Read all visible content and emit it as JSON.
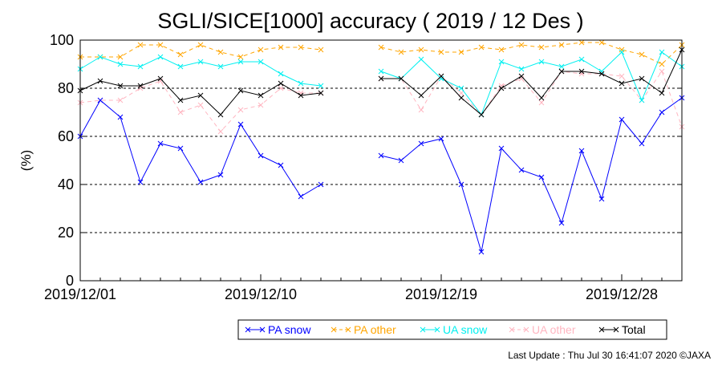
{
  "chart_data": {
    "type": "line",
    "title": "SGLI/SICE[1000] accuracy ( 2019 / 12 Des )",
    "ylabel": "(%)",
    "xlabel": "",
    "ylim": [
      0,
      100
    ],
    "yticks": [
      "0",
      "20",
      "40",
      "60",
      "80",
      "100"
    ],
    "xlim": [
      "2019/12/01",
      "2019/12/31"
    ],
    "xticks": [
      {
        "label": "2019/12/01",
        "day": 1
      },
      {
        "label": "2019/12/10",
        "day": 10
      },
      {
        "label": "2019/12/19",
        "day": 19
      },
      {
        "label": "2019/12/28",
        "day": 28
      }
    ],
    "grid": "horizontal dashed at 20, 40, 60, 80",
    "legend_position": "bottom",
    "x": [
      1,
      2,
      3,
      4,
      5,
      6,
      7,
      8,
      9,
      10,
      11,
      12,
      13,
      14,
      15,
      16,
      17,
      18,
      19,
      20,
      21,
      22,
      23,
      24,
      25,
      26,
      27,
      28,
      29,
      30,
      31
    ],
    "series": [
      {
        "name": "PA snow",
        "color": "#0000ff",
        "values": [
          60,
          75,
          68,
          41,
          57,
          55,
          41,
          44,
          65,
          52,
          48,
          35,
          40,
          null,
          null,
          52,
          50,
          57,
          59,
          40,
          12,
          55,
          46,
          43,
          24,
          54,
          34,
          67,
          57,
          70,
          76
        ]
      },
      {
        "name": "PA other",
        "color": "#ffa500",
        "values": [
          93,
          93,
          93,
          98,
          98,
          94,
          98,
          95,
          93,
          96,
          97,
          97,
          96,
          null,
          null,
          97,
          95,
          96,
          95,
          95,
          97,
          96,
          98,
          97,
          98,
          99,
          99,
          96,
          94,
          90,
          98
        ]
      },
      {
        "name": "UA snow",
        "color": "#00f0f0",
        "values": [
          88,
          93,
          90,
          89,
          93,
          89,
          91,
          89,
          91,
          91,
          86,
          82,
          81,
          null,
          null,
          87,
          84,
          92,
          84,
          80,
          69,
          91,
          88,
          91,
          89,
          92,
          87,
          95,
          75,
          95,
          89
        ]
      },
      {
        "name": "UA other",
        "color": "#ffb6c1",
        "values": [
          74,
          75,
          75,
          80,
          83,
          70,
          73,
          62,
          71,
          73,
          80,
          78,
          78,
          null,
          null,
          84,
          84,
          71,
          85,
          78,
          69,
          81,
          84,
          74,
          87,
          86,
          86,
          85,
          75,
          87,
          64
        ]
      },
      {
        "name": "Total",
        "color": "#000000",
        "values": [
          79,
          83,
          81,
          81,
          84,
          75,
          77,
          69,
          79,
          77,
          82,
          77,
          78,
          null,
          null,
          84,
          84,
          77,
          85,
          76,
          69,
          80,
          85,
          76,
          87,
          87,
          86,
          82,
          84,
          78,
          96
        ]
      }
    ],
    "footer": "Last Update : Thu Jul 30 16:41:07 2020 ©JAXA"
  }
}
